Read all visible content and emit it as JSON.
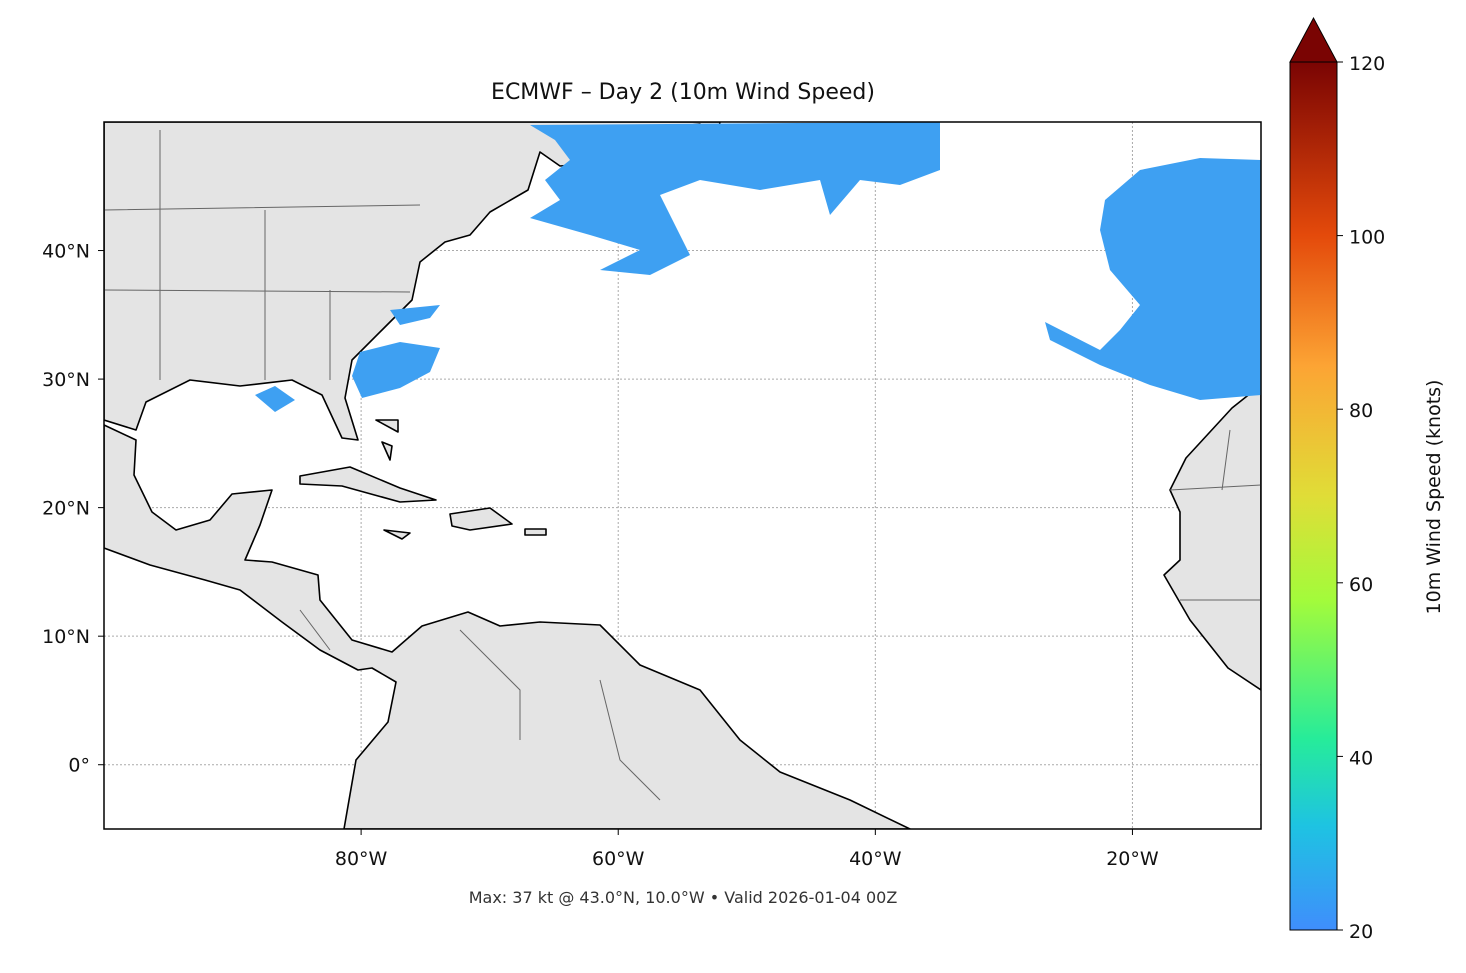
{
  "map": {
    "title": "ECMWF – Day 2 (10m Wind Speed)",
    "xlim": [
      -100,
      -10
    ],
    "ylim": [
      -5,
      50
    ],
    "xticks": [
      {
        "value": -80,
        "label": "80°W"
      },
      {
        "value": -60,
        "label": "60°W"
      },
      {
        "value": -40,
        "label": "40°W"
      },
      {
        "value": -20,
        "label": "20°W"
      }
    ],
    "yticks": [
      {
        "value": 0,
        "label": "0°"
      },
      {
        "value": 10,
        "label": "10°N"
      },
      {
        "value": 20,
        "label": "20°N"
      },
      {
        "value": 30,
        "label": "30°N"
      },
      {
        "value": 40,
        "label": "40°N"
      }
    ],
    "footer": "Max: 37 kt @ 43.0°N, 10.0°W • Valid 2026-01-04 00Z",
    "colorbar": {
      "label": "10m Wind Speed (knots)",
      "lim": [
        20,
        120
      ],
      "ticks": [
        20,
        40,
        60,
        80,
        100,
        120
      ]
    }
  }
}
